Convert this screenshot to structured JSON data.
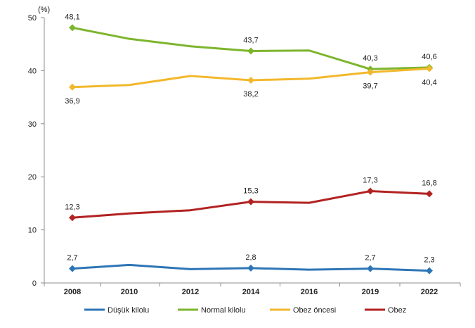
{
  "chart_data": {
    "type": "line",
    "unit_label": "(%)",
    "categories": [
      "2008",
      "2010",
      "2012",
      "2014",
      "2016",
      "2019",
      "2022"
    ],
    "ylim": [
      0,
      50
    ],
    "yticks": [
      0,
      10,
      20,
      30,
      40,
      50
    ],
    "grid": false,
    "legend_position": "bottom",
    "series": [
      {
        "name": "Düşük kilolu",
        "color": "#2E75B6",
        "values": [
          2.7,
          3.4,
          2.6,
          2.8,
          2.5,
          2.7,
          2.3
        ],
        "labels": [
          "2,7",
          null,
          null,
          "2,8",
          null,
          "2,7",
          "2,3"
        ]
      },
      {
        "name": "Normal kilolu",
        "color": "#7DB52D",
        "values": [
          48.1,
          46.0,
          44.6,
          43.7,
          43.8,
          40.3,
          40.6
        ],
        "labels": [
          "48,1",
          null,
          null,
          "43,7",
          null,
          "40,3",
          "40,6"
        ]
      },
      {
        "name": "Obez öncesi",
        "color": "#F2B82C",
        "values": [
          36.9,
          37.3,
          39.0,
          38.2,
          38.5,
          39.7,
          40.4
        ],
        "labels": [
          "36,9",
          null,
          null,
          "38,2",
          null,
          "39,7",
          "40,4"
        ]
      },
      {
        "name": "Obez",
        "color": "#B22222",
        "values": [
          12.3,
          13.1,
          13.7,
          15.3,
          15.1,
          17.3,
          16.8
        ],
        "labels": [
          "12,3",
          null,
          null,
          "15,3",
          null,
          "17,3",
          "16,8"
        ]
      }
    ]
  }
}
